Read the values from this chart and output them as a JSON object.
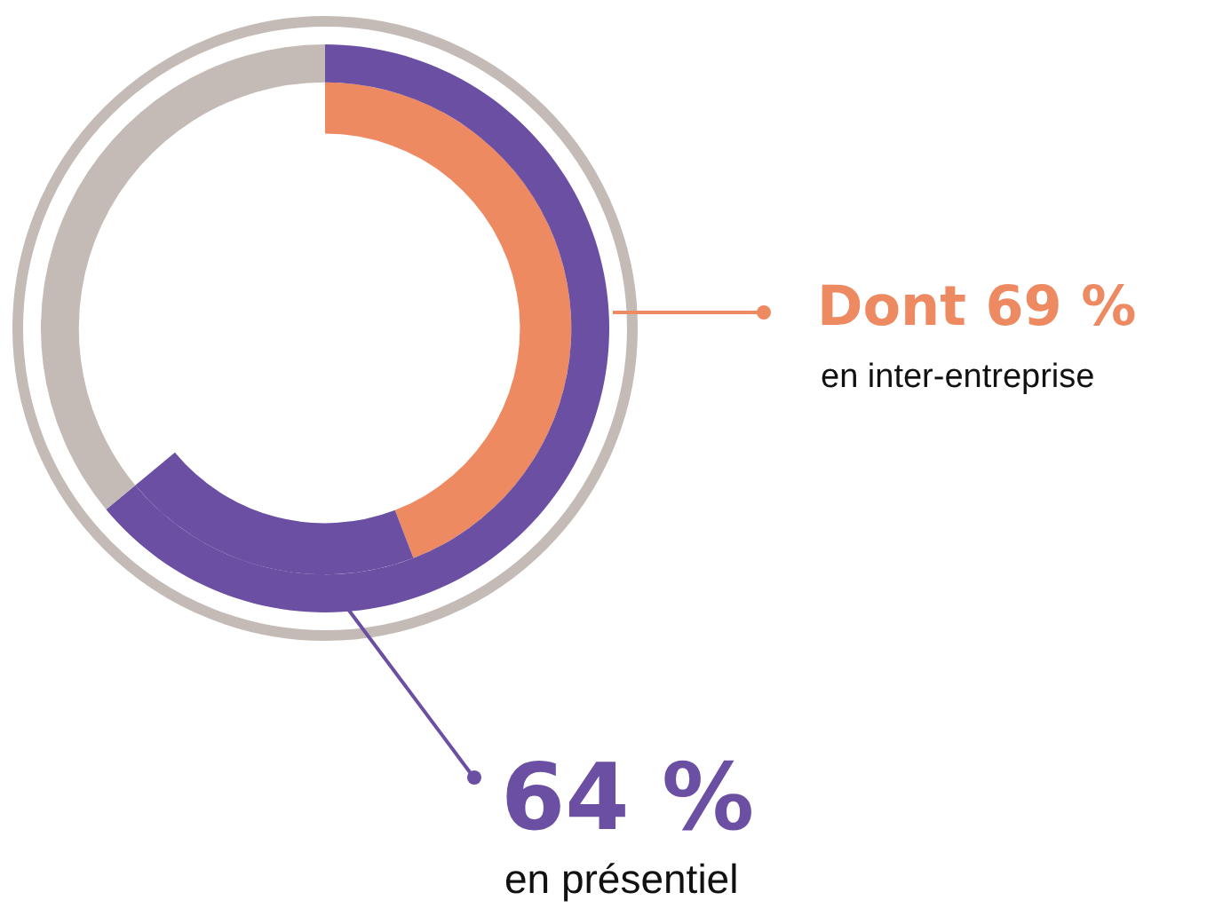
{
  "chart_data": {
    "type": "donut",
    "series": [
      {
        "values": [
          64,
          36
        ],
        "colors": [
          "#6a4fa3",
          "#c4bab6"
        ]
      },
      {
        "values": [
          69,
          31
        ],
        "colors": [
          "#ee8a62",
          "#6a4fa3"
        ]
      }
    ],
    "annotations": [
      "Dont 69 %",
      "en inter-entreprise",
      "64 %",
      "en présentiel"
    ]
  }
}
